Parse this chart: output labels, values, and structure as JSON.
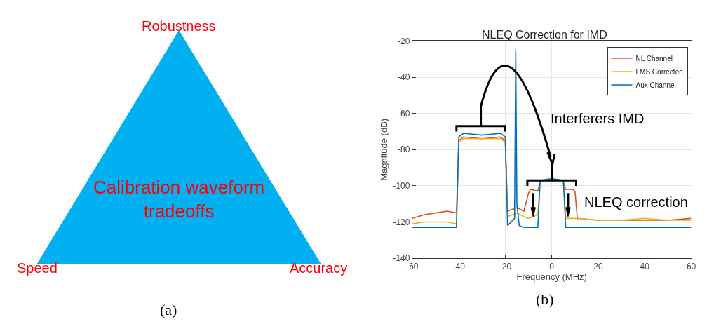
{
  "chart_data": [
    {
      "type": "other",
      "annotations": [
        "Robustness",
        "Speed",
        "Accuracy",
        "Calibration waveform tradeoffs",
        "(a)"
      ]
    },
    {
      "type": "line",
      "title": "NLEQ Correction for IMD",
      "xlabel": "Frequency (MHz)",
      "ylabel": "Magnitude (dB)",
      "xlim": [
        -60,
        60
      ],
      "ylim": [
        -140,
        -20
      ],
      "xticks": [
        -60,
        -40,
        -20,
        0,
        20,
        40,
        60
      ],
      "yticks": [
        -140,
        -120,
        -100,
        -80,
        -60,
        -40,
        -20
      ],
      "grid": true,
      "legend": "top right",
      "series": [
        {
          "name": "NL Channel",
          "color": "#d95319",
          "x": [
            -60,
            -55,
            -50,
            -45,
            -41,
            -40,
            -38,
            -30,
            -22,
            -20,
            -19,
            -15,
            -12,
            -10,
            -9,
            -6,
            -5,
            0,
            5,
            6,
            9,
            10,
            11,
            20,
            30,
            40,
            50,
            60
          ],
          "values": [
            -118,
            -116,
            -115,
            -114,
            -115,
            -75,
            -73,
            -74,
            -73,
            -75,
            -114,
            -112,
            -114,
            -104,
            -102,
            -103,
            -98,
            null,
            -98,
            -102,
            -102,
            -103,
            -118,
            -119,
            -119,
            -119,
            -119,
            -118
          ]
        },
        {
          "name": "LMS Corrected",
          "color": "#edb120",
          "x": [
            -60,
            -55,
            -50,
            -45,
            -41,
            -40,
            -38,
            -30,
            -22,
            -20,
            -19,
            -15,
            -12,
            -10,
            -6,
            -5,
            0,
            5,
            6,
            10,
            20,
            30,
            40,
            50,
            60
          ],
          "values": [
            -121,
            -120,
            -120,
            -120,
            -121,
            -76,
            -74,
            -74,
            -74,
            -76,
            -117,
            -115,
            -117,
            -118,
            -116,
            -98,
            null,
            -98,
            -118,
            -118,
            -119,
            -119,
            -118,
            -119,
            -119
          ]
        },
        {
          "name": "Aux Channel",
          "color": "#0072bd",
          "x": [
            -60,
            -50,
            -41,
            -40,
            -38,
            -30,
            -22,
            -20,
            -19,
            -16,
            -15.5,
            -15,
            -14,
            -12,
            -6,
            -5,
            0,
            5,
            6,
            10,
            20,
            30,
            40,
            50,
            60
          ],
          "values": [
            -123,
            -123,
            -123,
            -73,
            -71,
            -72,
            -71,
            -73,
            -122,
            -118,
            -25,
            -110,
            -122,
            -123,
            -123,
            -97,
            -96,
            -97,
            -123,
            -123,
            -123,
            -123,
            -123,
            -123,
            -123
          ]
        }
      ],
      "annotations": [
        "Interferers IMD",
        "NLEQ correction",
        "(b)"
      ]
    }
  ]
}
